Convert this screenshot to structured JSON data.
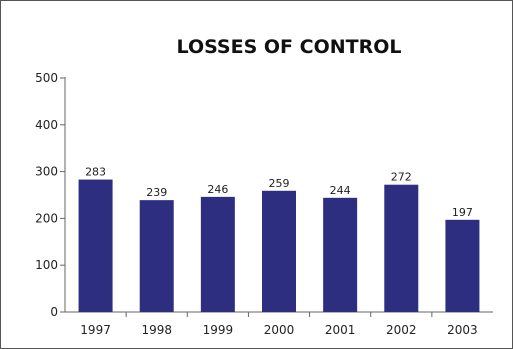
{
  "chart_data": {
    "type": "bar",
    "title": "LOSSES OF CONTROL",
    "xlabel": "",
    "ylabel": "",
    "categories": [
      "1997",
      "1998",
      "1999",
      "2000",
      "2001",
      "2002",
      "2003"
    ],
    "values": [
      283,
      239,
      246,
      259,
      244,
      272,
      197
    ],
    "data_labels": [
      "283",
      "239",
      "246",
      "259",
      "244",
      "272",
      "197"
    ],
    "ylim": [
      0,
      500
    ],
    "yticks": [
      0,
      100,
      200,
      300,
      400,
      500
    ],
    "ytick_labels": [
      "0",
      "100",
      "200",
      "300",
      "400",
      "500"
    ],
    "grid": false,
    "legend": "none",
    "bar_color": "#2e2e80"
  }
}
